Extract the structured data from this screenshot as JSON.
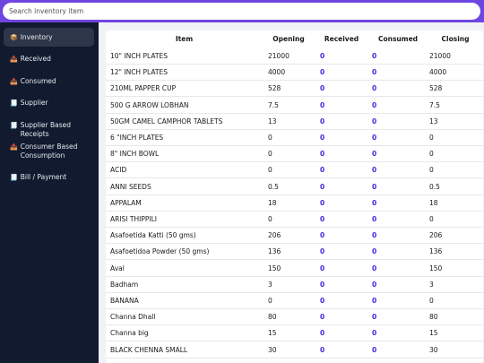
{
  "search": {
    "placeholder": "Search inventory item"
  },
  "sidebar": {
    "items": [
      {
        "icon": "📦",
        "icon_name": "package-icon",
        "label": "Inventory",
        "active": true
      },
      {
        "icon": "📥",
        "icon_name": "inbox-tray-icon",
        "label": "Received"
      },
      {
        "icon": "📤",
        "icon_name": "outbox-tray-icon",
        "label": "Consumed"
      },
      {
        "icon": "🧾",
        "icon_name": "receipt-icon",
        "label": "Supplier"
      },
      {
        "icon": "🧾",
        "icon_name": "receipt-icon",
        "label": "Supplier Based Receipts"
      },
      {
        "icon": "📤",
        "icon_name": "outbox-tray-icon",
        "label": "Consumer Based Consumption"
      },
      {
        "icon": "🧾",
        "icon_name": "receipt-icon",
        "label": "Bill / Payment"
      }
    ]
  },
  "table": {
    "headers": {
      "item": "Item",
      "opening": "Opening",
      "received": "Received",
      "consumed": "Consumed",
      "closing": "Closing"
    },
    "rows": [
      {
        "item": "10\" INCH PLATES",
        "opening": "21000",
        "received": "0",
        "consumed": "0",
        "closing": "21000"
      },
      {
        "item": "12\" INCH PLATES",
        "opening": "4000",
        "received": "0",
        "consumed": "0",
        "closing": "4000"
      },
      {
        "item": "210ML PAPPER CUP",
        "opening": "528",
        "received": "0",
        "consumed": "0",
        "closing": "528"
      },
      {
        "item": "500 G ARROW LOBHAN",
        "opening": "7.5",
        "received": "0",
        "consumed": "0",
        "closing": "7.5"
      },
      {
        "item": "50GM CAMEL CAMPHOR TABLETS",
        "opening": "13",
        "received": "0",
        "consumed": "0",
        "closing": "13"
      },
      {
        "item": "6 \"INCH PLATES",
        "opening": "0",
        "received": "0",
        "consumed": "0",
        "closing": "0"
      },
      {
        "item": "8\" INCH BOWL",
        "opening": "0",
        "received": "0",
        "consumed": "0",
        "closing": "0"
      },
      {
        "item": "ACID",
        "opening": "0",
        "received": "0",
        "consumed": "0",
        "closing": "0"
      },
      {
        "item": "ANNI SEEDS",
        "opening": "0.5",
        "received": "0",
        "consumed": "0",
        "closing": "0.5"
      },
      {
        "item": "APPALAM",
        "opening": "18",
        "received": "0",
        "consumed": "0",
        "closing": "18"
      },
      {
        "item": "ARISI THIPPILI",
        "opening": "0",
        "received": "0",
        "consumed": "0",
        "closing": "0"
      },
      {
        "item": "Asafoetida Katti (50 gms)",
        "opening": "206",
        "received": "0",
        "consumed": "0",
        "closing": "206"
      },
      {
        "item": "Asafoetidoa Powder (50 gms)",
        "opening": "136",
        "received": "0",
        "consumed": "0",
        "closing": "136"
      },
      {
        "item": "Aval",
        "opening": "150",
        "received": "0",
        "consumed": "0",
        "closing": "150"
      },
      {
        "item": "Badham",
        "opening": "3",
        "received": "0",
        "consumed": "0",
        "closing": "3"
      },
      {
        "item": "BANANA",
        "opening": "0",
        "received": "0",
        "consumed": "0",
        "closing": "0"
      },
      {
        "item": "Channa Dhall",
        "opening": "80",
        "received": "0",
        "consumed": "0",
        "closing": "80"
      },
      {
        "item": "Channa big",
        "opening": "15",
        "received": "0",
        "consumed": "0",
        "closing": "15"
      },
      {
        "item": "BLACK CHENNA SMALL",
        "opening": "30",
        "received": "0",
        "consumed": "0",
        "closing": "30"
      }
    ]
  },
  "colors": {
    "accent": "#6f45e0",
    "sidebar_bg": "#111a2e",
    "sidebar_active": "#2e3649",
    "value_blue": "#4326d8"
  }
}
